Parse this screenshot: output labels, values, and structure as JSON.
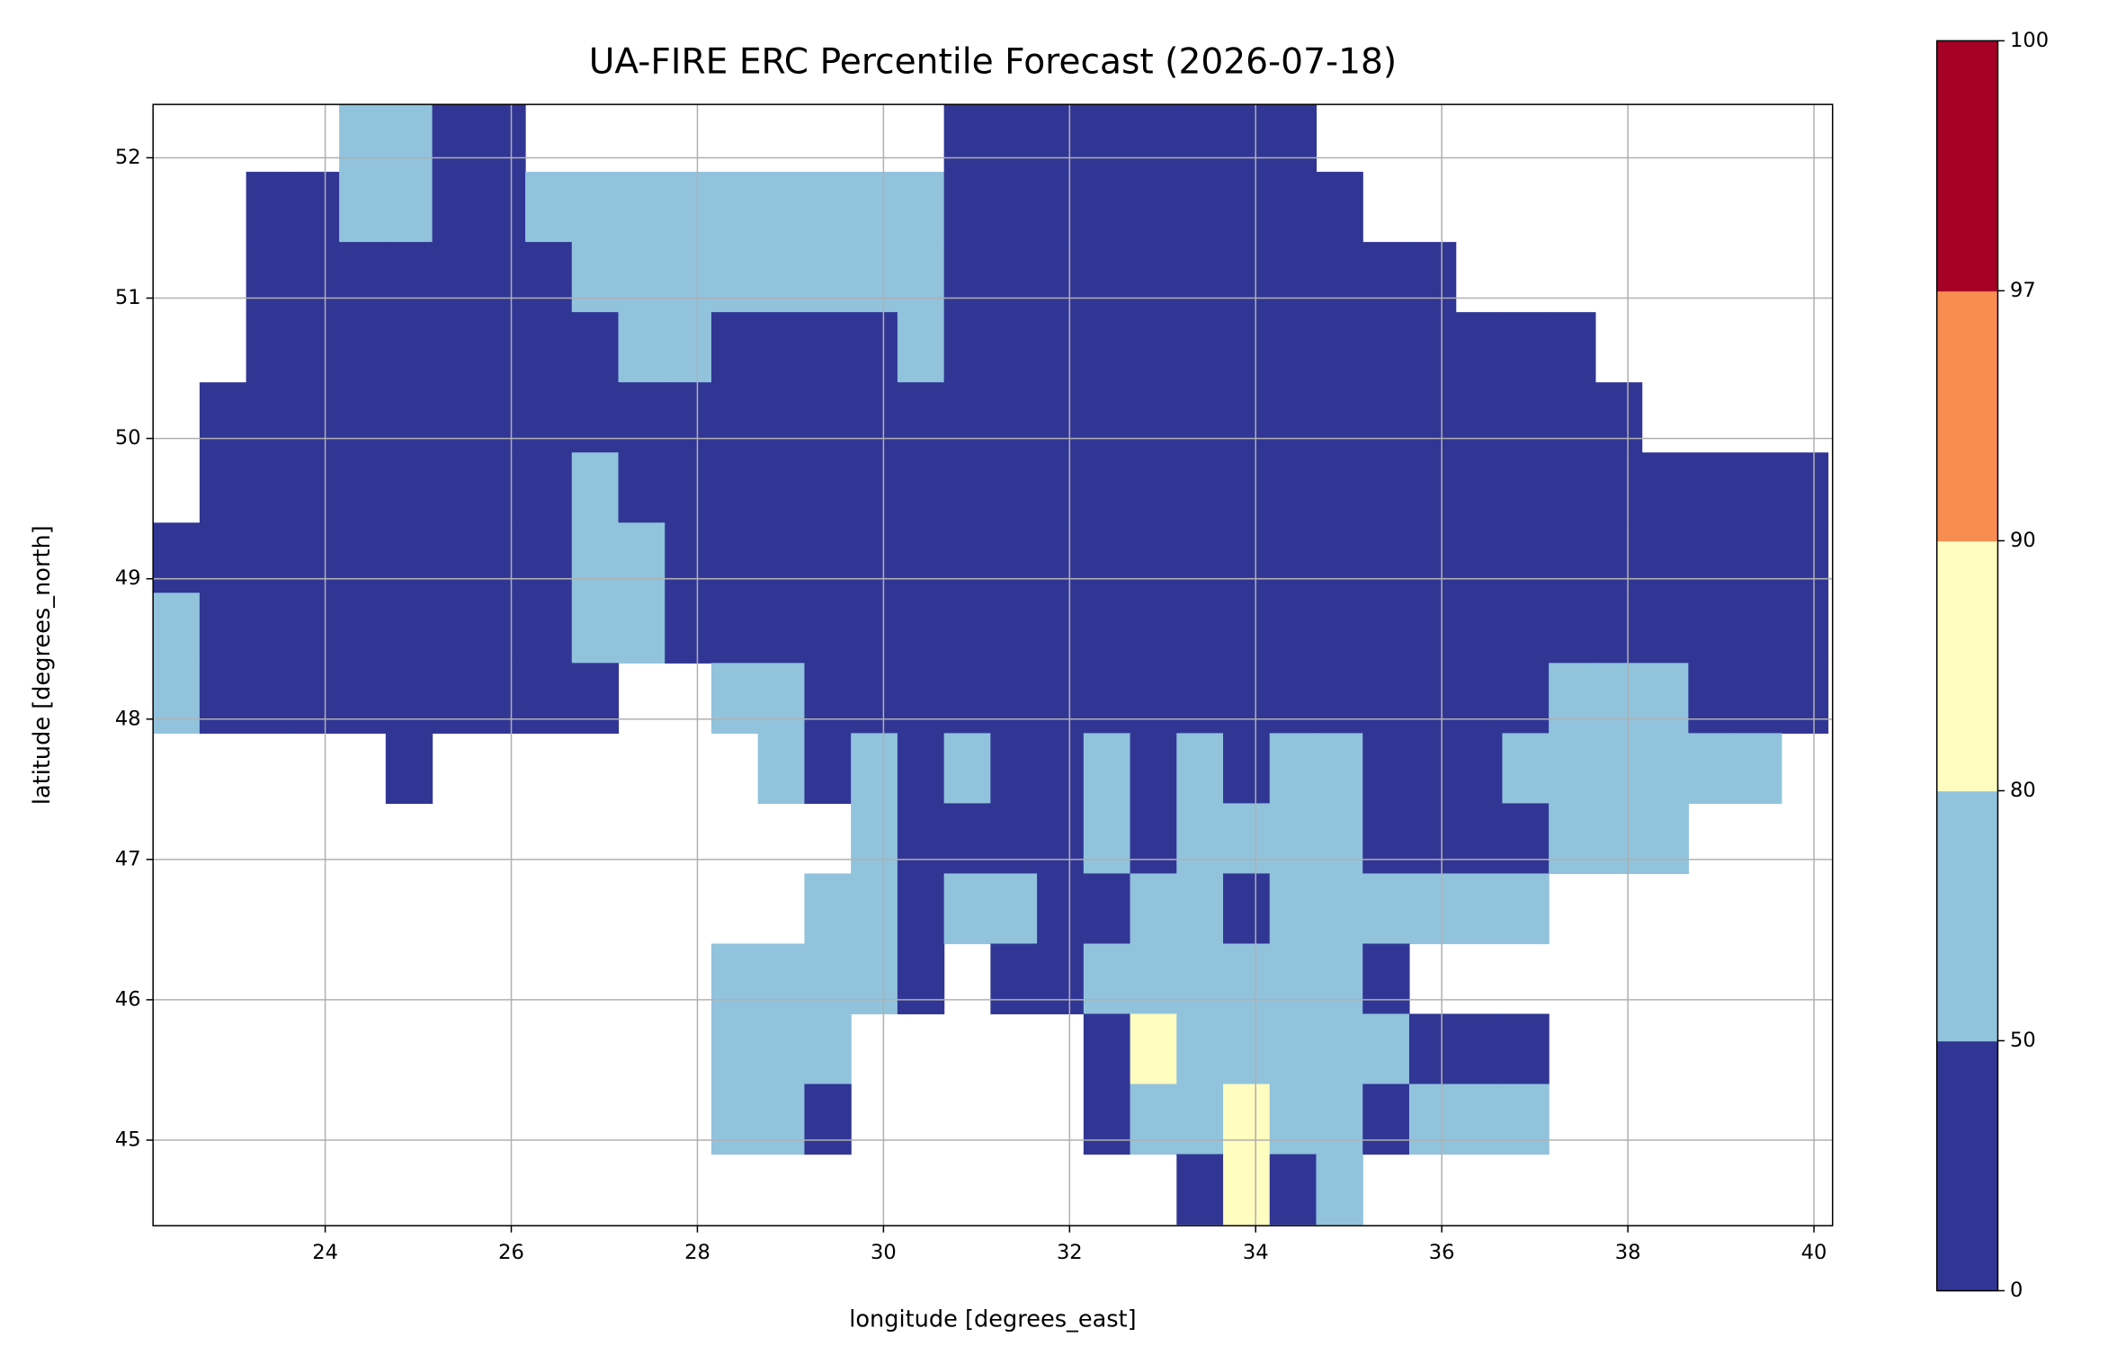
{
  "chart_data": {
    "type": "heatmap",
    "title": "UA-FIRE ERC Percentile Forecast (2026-07-18)",
    "x_label": "longitude [degrees_east]",
    "y_label": "latitude [degrees_north]",
    "xlim": [
      22.15,
      40.2
    ],
    "ylim": [
      44.39,
      52.38
    ],
    "xticks": [
      24,
      26,
      28,
      30,
      32,
      34,
      36,
      38,
      40
    ],
    "yticks": [
      45,
      46,
      47,
      48,
      49,
      50,
      51,
      52
    ],
    "grid": true,
    "cell_size": 0.5,
    "x": [
      22.4,
      22.9,
      23.4,
      23.9,
      24.4,
      24.9,
      25.4,
      25.9,
      26.4,
      26.9,
      27.4,
      27.9,
      28.4,
      28.9,
      29.4,
      29.9,
      30.4,
      30.9,
      31.4,
      31.9,
      32.4,
      32.9,
      33.4,
      33.9,
      34.4,
      34.9,
      35.4,
      35.9,
      36.4,
      36.9,
      37.4,
      37.9,
      38.4,
      38.9,
      39.4,
      39.9
    ],
    "y": [
      52.15,
      51.65,
      51.15,
      50.65,
      50.15,
      49.65,
      49.15,
      48.65,
      48.15,
      47.65,
      47.15,
      46.65,
      46.15,
      45.65,
      45.15,
      44.65
    ],
    "z": [
      [
        null,
        null,
        null,
        null,
        65,
        65,
        25,
        25,
        null,
        null,
        null,
        null,
        null,
        null,
        null,
        null,
        null,
        25,
        25,
        25,
        25,
        25,
        25,
        25,
        25,
        null,
        null,
        null,
        null,
        null,
        null,
        null,
        null,
        null,
        null,
        null
      ],
      [
        null,
        null,
        25,
        25,
        65,
        65,
        25,
        25,
        65,
        65,
        65,
        65,
        65,
        65,
        65,
        65,
        65,
        25,
        25,
        25,
        25,
        25,
        25,
        25,
        25,
        25,
        null,
        null,
        null,
        null,
        null,
        null,
        null,
        null,
        null,
        null
      ],
      [
        null,
        null,
        25,
        25,
        25,
        25,
        25,
        25,
        25,
        65,
        65,
        65,
        65,
        65,
        65,
        65,
        65,
        25,
        25,
        25,
        25,
        25,
        25,
        25,
        25,
        25,
        25,
        25,
        null,
        null,
        null,
        null,
        null,
        null,
        null,
        null
      ],
      [
        null,
        null,
        25,
        25,
        25,
        25,
        25,
        25,
        25,
        25,
        65,
        65,
        25,
        25,
        25,
        25,
        65,
        25,
        25,
        25,
        25,
        25,
        25,
        25,
        25,
        25,
        25,
        25,
        25,
        25,
        25,
        null,
        null,
        null,
        null,
        null
      ],
      [
        null,
        25,
        25,
        25,
        25,
        25,
        25,
        25,
        25,
        25,
        25,
        25,
        25,
        25,
        25,
        25,
        25,
        25,
        25,
        25,
        25,
        25,
        25,
        25,
        25,
        25,
        25,
        25,
        25,
        25,
        25,
        25,
        null,
        null,
        null,
        null
      ],
      [
        null,
        25,
        25,
        25,
        25,
        25,
        25,
        25,
        25,
        65,
        25,
        25,
        25,
        25,
        25,
        25,
        25,
        25,
        25,
        25,
        25,
        25,
        25,
        25,
        25,
        25,
        25,
        25,
        25,
        25,
        25,
        25,
        25,
        25,
        25,
        25
      ],
      [
        25,
        25,
        25,
        25,
        25,
        25,
        25,
        25,
        25,
        65,
        65,
        25,
        25,
        25,
        25,
        25,
        25,
        25,
        25,
        25,
        25,
        25,
        25,
        25,
        25,
        25,
        25,
        25,
        25,
        25,
        25,
        25,
        25,
        25,
        25,
        25
      ],
      [
        65,
        25,
        25,
        25,
        25,
        25,
        25,
        25,
        25,
        65,
        65,
        25,
        25,
        25,
        25,
        25,
        25,
        25,
        25,
        25,
        25,
        25,
        25,
        25,
        25,
        25,
        25,
        25,
        25,
        25,
        25,
        25,
        25,
        25,
        25,
        25
      ],
      [
        65,
        25,
        25,
        25,
        25,
        25,
        25,
        25,
        25,
        25,
        null,
        null,
        65,
        65,
        25,
        25,
        25,
        25,
        25,
        25,
        25,
        25,
        25,
        25,
        25,
        25,
        25,
        25,
        25,
        25,
        65,
        65,
        65,
        25,
        25,
        25
      ],
      [
        null,
        null,
        null,
        null,
        null,
        25,
        null,
        null,
        null,
        null,
        null,
        null,
        null,
        65,
        25,
        65,
        25,
        65,
        25,
        25,
        65,
        25,
        65,
        25,
        65,
        65,
        25,
        25,
        25,
        65,
        65,
        65,
        65,
        65,
        65,
        null
      ],
      [
        null,
        null,
        null,
        null,
        null,
        null,
        null,
        null,
        null,
        null,
        null,
        null,
        null,
        null,
        null,
        65,
        25,
        25,
        25,
        25,
        65,
        25,
        65,
        65,
        65,
        65,
        25,
        25,
        25,
        25,
        65,
        65,
        65,
        null,
        null,
        null
      ],
      [
        null,
        null,
        null,
        null,
        null,
        null,
        null,
        null,
        null,
        null,
        null,
        null,
        null,
        null,
        65,
        65,
        25,
        65,
        65,
        25,
        25,
        65,
        65,
        25,
        65,
        65,
        65,
        65,
        65,
        65,
        null,
        null,
        null,
        null,
        null,
        null
      ],
      [
        null,
        null,
        null,
        null,
        null,
        null,
        null,
        null,
        null,
        null,
        null,
        null,
        65,
        65,
        65,
        65,
        25,
        null,
        25,
        25,
        65,
        65,
        65,
        65,
        65,
        65,
        25,
        null,
        null,
        null,
        null,
        null,
        null,
        null,
        null,
        null
      ],
      [
        null,
        null,
        null,
        null,
        null,
        null,
        null,
        null,
        null,
        null,
        null,
        null,
        65,
        65,
        65,
        null,
        null,
        null,
        null,
        null,
        25,
        85,
        65,
        65,
        65,
        65,
        65,
        25,
        25,
        25,
        null,
        null,
        null,
        null,
        null,
        null
      ],
      [
        null,
        null,
        null,
        null,
        null,
        null,
        null,
        null,
        null,
        null,
        null,
        null,
        65,
        65,
        25,
        null,
        null,
        null,
        null,
        null,
        25,
        65,
        65,
        85,
        65,
        65,
        25,
        65,
        65,
        65,
        null,
        null,
        null,
        null,
        null,
        null
      ],
      [
        null,
        null,
        null,
        null,
        null,
        null,
        null,
        null,
        null,
        null,
        null,
        null,
        null,
        null,
        null,
        null,
        null,
        null,
        null,
        null,
        null,
        null,
        25,
        85,
        25,
        65,
        null,
        null,
        null,
        null,
        null,
        null,
        null,
        null,
        null,
        null
      ]
    ],
    "colorbar": {
      "levels": [
        0,
        50,
        80,
        90,
        97,
        100
      ],
      "colors": [
        "#313695",
        "#91c3dd",
        "#fefcbf",
        "#f88d52",
        "#a50026"
      ]
    }
  }
}
